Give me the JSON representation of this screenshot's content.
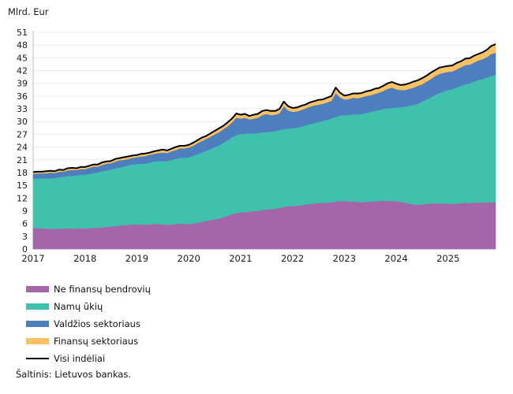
{
  "chart": {
    "unit_label": "Mlrd. Eur",
    "source": "Šaltinis: Lietuvos bankas."
  },
  "legend": {
    "items": [
      {
        "label": "Ne finansų bendrovių",
        "color": "#a466a8",
        "type": "area"
      },
      {
        "label": "Namų ūkių",
        "color": "#3fc1ad",
        "type": "area"
      },
      {
        "label": "Valdžios sektoriaus",
        "color": "#4d7fbe",
        "type": "area"
      },
      {
        "label": "Finansų sektoriaus",
        "color": "#f8c264",
        "type": "area"
      },
      {
        "label": "Visi indėliai",
        "color": "#000000",
        "type": "line"
      }
    ]
  },
  "chart_data": {
    "type": "area",
    "stacked": true,
    "title": "Mlrd. Eur",
    "xlabel": "",
    "ylabel": "Mlrd. Eur",
    "x_unit": "month",
    "x_range": [
      "2017-01",
      "2025-12"
    ],
    "x_tick_labels": [
      "2017",
      "2018",
      "2019",
      "2020",
      "2021",
      "2022",
      "2023",
      "2024",
      "2025"
    ],
    "ylim": [
      0,
      51
    ],
    "y_tick_step": 3,
    "grid": "horizontal",
    "legend_position": "bottom-left",
    "colors": {
      "grid": "#ebebeb",
      "axis": "#c9c9c9",
      "text": "#1a1a1a",
      "background": "#ffffff"
    },
    "series": [
      {
        "name": "Ne finansų bendrovių",
        "color": "#a466a8",
        "values": [
          5.0,
          4.9,
          4.9,
          4.8,
          4.8,
          4.7,
          4.8,
          4.8,
          4.9,
          4.8,
          4.8,
          4.9,
          4.8,
          4.9,
          5.0,
          5.0,
          5.1,
          5.2,
          5.3,
          5.4,
          5.5,
          5.6,
          5.7,
          5.8,
          5.8,
          5.8,
          5.7,
          5.8,
          5.9,
          5.9,
          5.8,
          5.7,
          5.8,
          5.9,
          6.0,
          5.9,
          5.9,
          6.0,
          6.2,
          6.4,
          6.6,
          6.8,
          7.0,
          7.2,
          7.5,
          7.8,
          8.2,
          8.5,
          8.6,
          8.7,
          8.8,
          8.9,
          9.0,
          9.2,
          9.3,
          9.4,
          9.5,
          9.7,
          9.9,
          10.1,
          10.1,
          10.2,
          10.3,
          10.5,
          10.6,
          10.7,
          10.8,
          10.9,
          10.9,
          11.0,
          11.2,
          11.3,
          11.3,
          11.2,
          11.2,
          11.1,
          11.0,
          11.1,
          11.2,
          11.2,
          11.3,
          11.4,
          11.3,
          11.3,
          11.3,
          11.1,
          10.9,
          10.7,
          10.5,
          10.4,
          10.5,
          10.6,
          10.7,
          10.8,
          10.7,
          10.7,
          10.7,
          10.6,
          10.7,
          10.8,
          10.9,
          10.8,
          10.9,
          11.0,
          10.9,
          11.0,
          11.0,
          11.1
        ]
      },
      {
        "name": "Namų ūkių",
        "color": "#3fc1ad",
        "values": [
          11.6,
          11.7,
          11.8,
          11.8,
          11.9,
          12.0,
          12.1,
          12.2,
          12.3,
          12.4,
          12.5,
          12.6,
          12.7,
          12.8,
          12.9,
          13.0,
          13.2,
          13.3,
          13.4,
          13.6,
          13.7,
          13.8,
          14.0,
          14.1,
          14.2,
          14.3,
          14.4,
          14.5,
          14.7,
          14.8,
          14.9,
          15.0,
          15.2,
          15.3,
          15.5,
          15.6,
          15.7,
          15.9,
          16.1,
          16.3,
          16.5,
          16.7,
          17.0,
          17.2,
          17.5,
          17.8,
          18.1,
          18.3,
          18.5,
          18.4,
          18.4,
          18.3,
          18.3,
          18.3,
          18.2,
          18.2,
          18.3,
          18.3,
          18.3,
          18.3,
          18.3,
          18.4,
          18.5,
          18.6,
          18.8,
          18.9,
          19.1,
          19.3,
          19.5,
          19.7,
          19.9,
          20.1,
          20.2,
          20.3,
          20.5,
          20.6,
          20.8,
          20.9,
          21.1,
          21.3,
          21.4,
          21.6,
          21.8,
          21.9,
          22.0,
          22.3,
          22.6,
          23.0,
          23.4,
          23.8,
          24.2,
          24.6,
          25.0,
          25.5,
          26.0,
          26.4,
          26.7,
          27.0,
          27.3,
          27.6,
          27.9,
          28.2,
          28.5,
          28.8,
          29.1,
          29.4,
          29.7,
          29.9
        ]
      },
      {
        "name": "Valdžios sektoriaus",
        "color": "#4d7fbe",
        "values": [
          1.1,
          1.2,
          1.1,
          1.2,
          1.3,
          1.2,
          1.3,
          1.2,
          1.3,
          1.4,
          1.3,
          1.3,
          1.3,
          1.4,
          1.5,
          1.4,
          1.5,
          1.6,
          1.5,
          1.6,
          1.7,
          1.6,
          1.5,
          1.6,
          1.6,
          1.7,
          1.8,
          1.9,
          1.8,
          1.9,
          2.0,
          1.9,
          2.0,
          2.1,
          2.2,
          2.2,
          2.3,
          2.4,
          2.6,
          2.7,
          2.8,
          2.9,
          3.0,
          3.1,
          3.2,
          3.3,
          3.5,
          4.1,
          3.6,
          3.8,
          3.3,
          3.5,
          3.6,
          4.0,
          4.3,
          3.9,
          3.8,
          4.0,
          5.4,
          4.2,
          3.9,
          3.8,
          3.9,
          4.0,
          4.1,
          4.2,
          4.1,
          4.0,
          4.1,
          4.2,
          5.6,
          4.3,
          3.7,
          3.8,
          3.9,
          3.8,
          3.9,
          4.0,
          3.9,
          4.0,
          4.1,
          4.2,
          4.6,
          4.8,
          4.3,
          4.0,
          3.9,
          4.0,
          4.1,
          4.2,
          4.1,
          4.2,
          4.3,
          4.4,
          4.5,
          4.4,
          4.3,
          4.2,
          4.3,
          4.4,
          4.5,
          4.4,
          4.5,
          4.6,
          4.7,
          4.8,
          5.2,
          5.2
        ]
      },
      {
        "name": "Finansų sektoriaus",
        "color": "#f8c264",
        "values": [
          0.4,
          0.4,
          0.4,
          0.5,
          0.4,
          0.4,
          0.5,
          0.4,
          0.5,
          0.5,
          0.4,
          0.5,
          0.5,
          0.5,
          0.5,
          0.5,
          0.6,
          0.5,
          0.5,
          0.6,
          0.5,
          0.6,
          0.6,
          0.5,
          0.5,
          0.6,
          0.6,
          0.5,
          0.6,
          0.6,
          0.7,
          0.6,
          0.6,
          0.7,
          0.6,
          0.6,
          0.6,
          0.7,
          0.7,
          0.8,
          0.7,
          0.8,
          0.8,
          0.9,
          0.8,
          0.9,
          0.9,
          1.0,
          0.9,
          0.9,
          0.8,
          0.9,
          0.9,
          1.0,
          0.9,
          1.0,
          0.9,
          1.0,
          1.1,
          1.0,
          0.9,
          0.9,
          1.0,
          0.9,
          1.0,
          1.0,
          1.1,
          1.0,
          1.1,
          1.1,
          1.3,
          1.1,
          0.9,
          1.0,
          1.0,
          1.1,
          1.0,
          1.1,
          1.1,
          1.2,
          1.1,
          1.2,
          1.3,
          1.3,
          1.3,
          1.2,
          1.3,
          1.3,
          1.4,
          1.3,
          1.4,
          1.4,
          1.5,
          1.4,
          1.5,
          1.4,
          1.4,
          1.4,
          1.5,
          1.4,
          1.5,
          1.5,
          1.6,
          1.5,
          1.6,
          1.7,
          1.9,
          2.0
        ]
      }
    ],
    "total_line": {
      "name": "Visi indėliai",
      "color": "#000000",
      "derived": "sum_of_series"
    }
  }
}
